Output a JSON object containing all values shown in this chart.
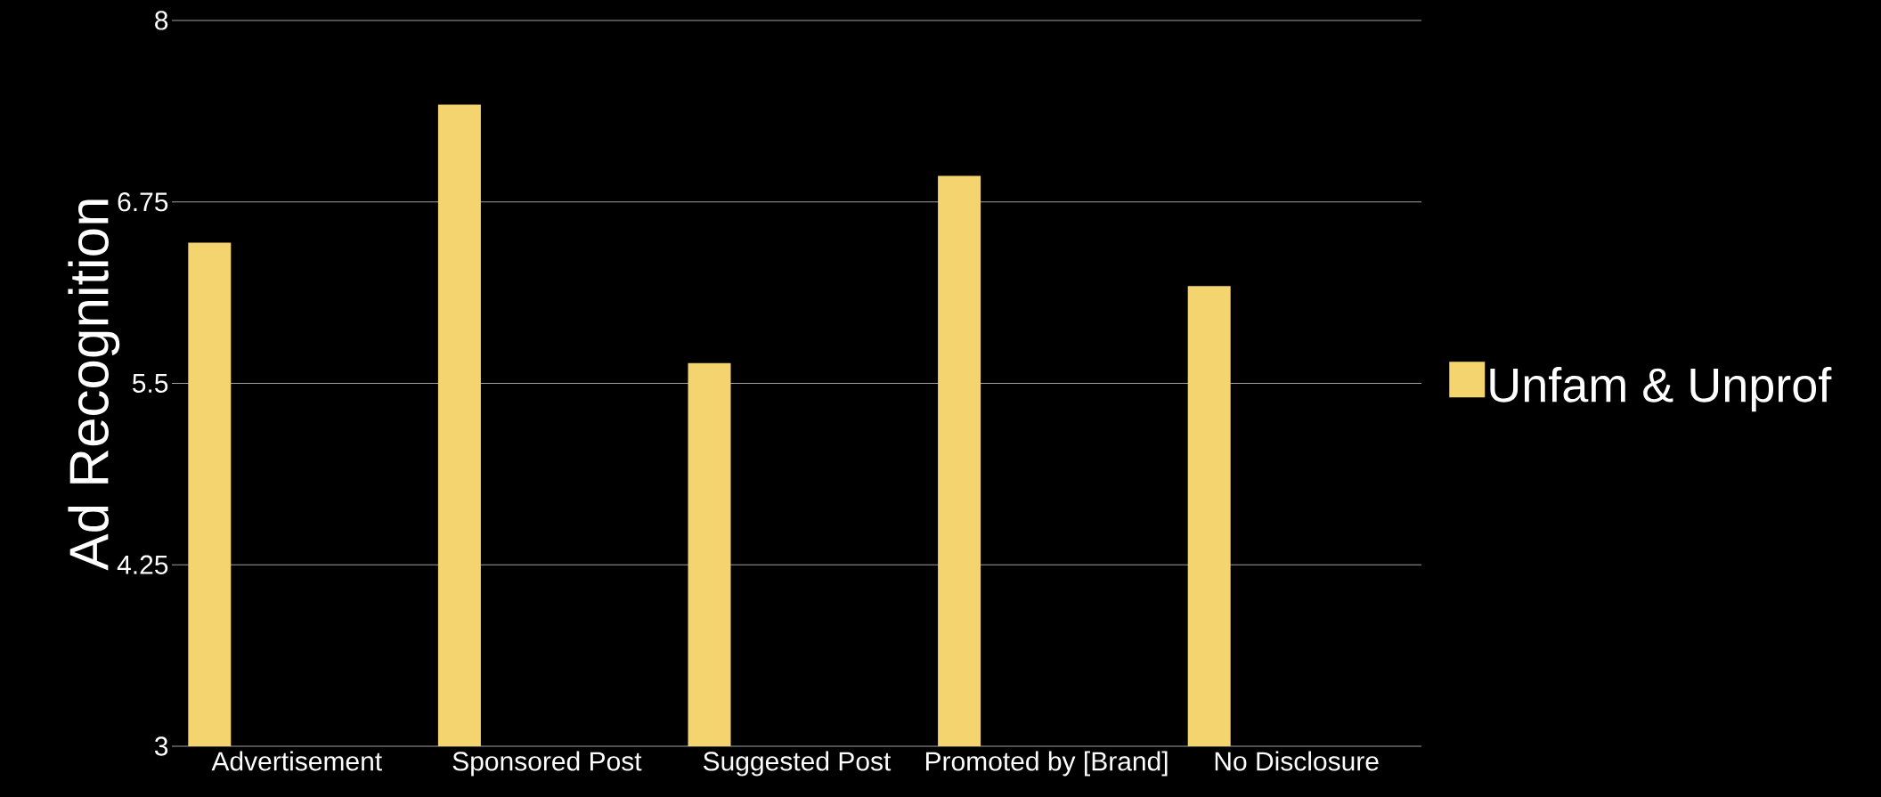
{
  "chart_data": {
    "type": "bar",
    "ylabel": "Ad Recognition",
    "categories": [
      "Advertisement",
      "Sponsored Post",
      "Suggested Post",
      "Promoted by [Brand]",
      "No Disclosure"
    ],
    "series": [
      {
        "name": "Unfam & Unprof",
        "color": "#f3d46e",
        "values": [
          6.47,
          7.42,
          5.64,
          6.93,
          6.17
        ]
      }
    ],
    "ylim": [
      3,
      8
    ],
    "yticks": [
      3,
      4.25,
      5.5,
      6.75,
      8
    ],
    "grid": "y",
    "legend": "right"
  }
}
